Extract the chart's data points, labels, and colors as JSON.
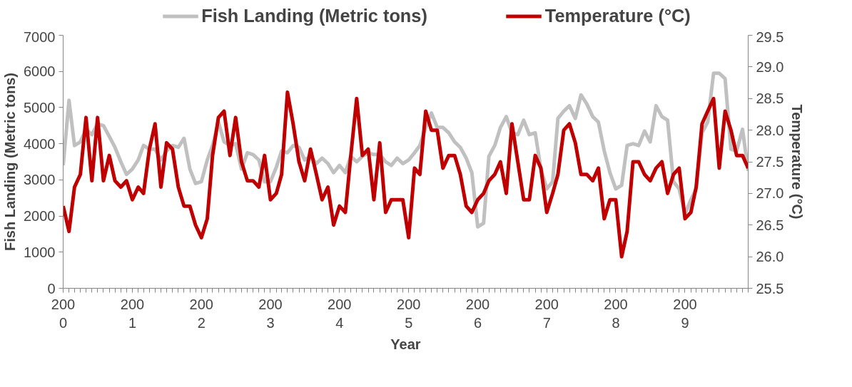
{
  "chart_data": {
    "type": "line",
    "xlabel": "Year",
    "ylabel": "Fish Landing (Metric tons)",
    "y2label": "Temperature (°C)",
    "x": [
      "2000-01",
      "2000-02",
      "2000-03",
      "2000-04",
      "2000-05",
      "2000-06",
      "2000-07",
      "2000-08",
      "2000-09",
      "2000-10",
      "2000-11",
      "2000-12",
      "2001-01",
      "2001-02",
      "2001-03",
      "2001-04",
      "2001-05",
      "2001-06",
      "2001-07",
      "2001-08",
      "2001-09",
      "2001-10",
      "2001-11",
      "2001-12",
      "2002-01",
      "2002-02",
      "2002-03",
      "2002-04",
      "2002-05",
      "2002-06",
      "2002-07",
      "2002-08",
      "2002-09",
      "2002-10",
      "2002-11",
      "2002-12",
      "2003-01",
      "2003-02",
      "2003-03",
      "2003-04",
      "2003-05",
      "2003-06",
      "2003-07",
      "2003-08",
      "2003-09",
      "2003-10",
      "2003-11",
      "2003-12",
      "2004-01",
      "2004-02",
      "2004-03",
      "2004-04",
      "2004-05",
      "2004-06",
      "2004-07",
      "2004-08",
      "2004-09",
      "2004-10",
      "2004-11",
      "2004-12",
      "2005-01",
      "2005-02",
      "2005-03",
      "2005-04",
      "2005-05",
      "2005-06",
      "2005-07",
      "2005-08",
      "2005-09",
      "2005-10",
      "2005-11",
      "2005-12",
      "2006-01",
      "2006-02",
      "2006-03",
      "2006-04",
      "2006-05",
      "2006-06",
      "2006-07",
      "2006-08",
      "2006-09",
      "2006-10",
      "2006-11",
      "2006-12",
      "2007-01",
      "2007-02",
      "2007-03",
      "2007-04",
      "2007-05",
      "2007-06",
      "2007-07",
      "2007-08",
      "2007-09",
      "2007-10",
      "2007-11",
      "2007-12",
      "2008-01",
      "2008-02",
      "2008-03",
      "2008-04",
      "2008-05",
      "2008-06",
      "2008-07",
      "2008-08",
      "2008-09",
      "2008-10",
      "2008-11",
      "2008-12",
      "2009-01",
      "2009-02",
      "2009-03",
      "2009-04",
      "2009-05",
      "2009-06",
      "2009-07",
      "2009-08",
      "2009-09",
      "2009-10",
      "2009-11",
      "2009-12"
    ],
    "series": [
      {
        "name": "Fish Landing (Metric tons)",
        "color": "#c0c0c0",
        "values": [
          3400,
          5200,
          3950,
          4050,
          4400,
          4250,
          4550,
          4500,
          4200,
          3900,
          3500,
          3150,
          3300,
          3550,
          3950,
          3850,
          3850,
          3550,
          3800,
          3950,
          3900,
          4150,
          3300,
          2900,
          2950,
          3550,
          3950,
          4600,
          4050,
          3950,
          4000,
          3300,
          3750,
          3700,
          3550,
          2950,
          2950,
          3350,
          3800,
          3750,
          3950,
          3900,
          3550,
          3650,
          3450,
          3600,
          3450,
          3200,
          3400,
          3200,
          3650,
          3500,
          3650,
          3750,
          3700,
          3700,
          3500,
          3400,
          3600,
          3450,
          3550,
          3750,
          3950,
          4450,
          4850,
          4450,
          4450,
          4300,
          4050,
          3900,
          3600,
          3200,
          1700,
          1800,
          3650,
          3950,
          4450,
          4750,
          4300,
          4250,
          4650,
          4250,
          4300,
          3300,
          2750,
          2950,
          4700,
          4900,
          5050,
          4700,
          5350,
          5100,
          4750,
          4600,
          3800,
          3200,
          2750,
          2850,
          3950,
          4000,
          3950,
          4350,
          4050,
          5050,
          4750,
          4650,
          2950,
          2750,
          2050,
          2450,
          2750,
          4300,
          4600,
          5950,
          5950,
          5800,
          3850,
          3800,
          4400,
          3250
        ]
      },
      {
        "name": "Temperature (°C)",
        "color": "#c00000",
        "axis": "y2",
        "values": [
          26.8,
          26.4,
          27.1,
          27.3,
          28.2,
          27.2,
          28.2,
          27.2,
          27.6,
          27.2,
          27.1,
          27.2,
          26.9,
          27.1,
          27.0,
          27.7,
          28.1,
          27.1,
          27.8,
          27.7,
          27.1,
          26.8,
          26.8,
          26.5,
          26.3,
          26.6,
          27.6,
          28.2,
          28.3,
          27.6,
          28.2,
          27.5,
          27.2,
          27.2,
          27.1,
          27.6,
          26.9,
          27.0,
          27.3,
          28.6,
          28.1,
          27.5,
          27.2,
          27.7,
          27.3,
          26.9,
          27.1,
          26.5,
          26.8,
          26.7,
          27.6,
          28.5,
          27.6,
          27.7,
          26.9,
          27.8,
          26.7,
          26.9,
          26.9,
          26.9,
          26.3,
          27.4,
          27.3,
          28.3,
          28.0,
          28.0,
          27.4,
          27.6,
          27.6,
          27.3,
          26.8,
          26.7,
          26.9,
          27.0,
          27.2,
          27.3,
          27.5,
          27.0,
          28.1,
          27.5,
          26.9,
          26.9,
          27.6,
          27.4,
          26.7,
          27.0,
          27.3,
          28.0,
          28.1,
          27.8,
          27.3,
          27.3,
          27.2,
          27.4,
          26.6,
          26.9,
          26.9,
          26.0,
          26.4,
          27.5,
          27.5,
          27.3,
          27.2,
          27.4,
          27.5,
          27.0,
          27.3,
          27.4,
          26.6,
          26.7,
          27.1,
          28.1,
          28.3,
          28.5,
          27.4,
          28.3,
          28.0,
          27.6,
          27.6,
          27.4
        ]
      }
    ],
    "xlim": [
      "2000-01",
      "2009-12"
    ],
    "xticks": [
      {
        "value": "2000-01",
        "label": "200\n0"
      },
      {
        "value": "2001-01",
        "label": "200\n1"
      },
      {
        "value": "2002-01",
        "label": "200\n2"
      },
      {
        "value": "2003-01",
        "label": "200\n3"
      },
      {
        "value": "2004-01",
        "label": "200\n4"
      },
      {
        "value": "2005-01",
        "label": "200\n5"
      },
      {
        "value": "2006-01",
        "label": "200\n6"
      },
      {
        "value": "2007-01",
        "label": "200\n7"
      },
      {
        "value": "2008-01",
        "label": "200\n8"
      },
      {
        "value": "2009-01",
        "label": "200\n9"
      }
    ],
    "ylim": [
      0,
      7000
    ],
    "yticks": [
      0,
      1000,
      2000,
      3000,
      4000,
      5000,
      6000,
      7000
    ],
    "y2lim": [
      25.5,
      29.5
    ],
    "y2ticks": [
      25.5,
      {
        "value": 26,
        "label": "26.0"
      },
      26.5,
      {
        "value": 27,
        "label": "27.0"
      },
      27.5,
      {
        "value": 28,
        "label": "28.0"
      },
      28.5,
      {
        "value": 29,
        "label": "29.0"
      },
      29.5
    ],
    "legend": "top",
    "grid": false,
    "marker": "none",
    "line_style": "solid"
  }
}
